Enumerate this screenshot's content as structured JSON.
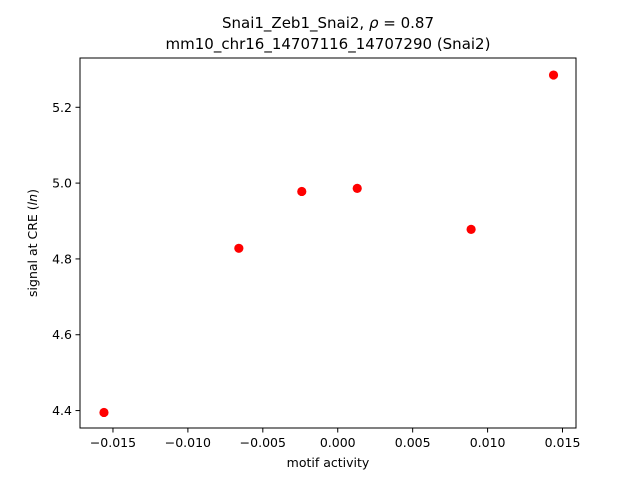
{
  "chart_data": {
    "type": "scatter",
    "title_line1_prefix": "Snai1_Zeb1_Snai2, ",
    "title_line1_rho": "ρ",
    "title_line1_suffix": " = 0.87",
    "title_line2": "mm10_chr16_14707116_14707290 (Snai2)",
    "xlabel": "motif activity",
    "ylabel_prefix": "signal at CRE (",
    "ylabel_italic": "ln",
    "ylabel_suffix": ")",
    "xlim": [
      -0.0172,
      0.0159
    ],
    "ylim": [
      4.354,
      5.33
    ],
    "xticks": [
      {
        "value": -0.015,
        "label": "−0.015"
      },
      {
        "value": -0.01,
        "label": "−0.010"
      },
      {
        "value": -0.005,
        "label": "−0.005"
      },
      {
        "value": 0.0,
        "label": "0.000"
      },
      {
        "value": 0.005,
        "label": "0.005"
      },
      {
        "value": 0.01,
        "label": "0.010"
      },
      {
        "value": 0.015,
        "label": "0.015"
      }
    ],
    "yticks": [
      {
        "value": 4.4,
        "label": "4.4"
      },
      {
        "value": 4.6,
        "label": "4.6"
      },
      {
        "value": 4.8,
        "label": "4.8"
      },
      {
        "value": 5.0,
        "label": "5.0"
      },
      {
        "value": 5.2,
        "label": "5.2"
      }
    ],
    "marker_color": "#ff0000",
    "points": [
      {
        "x": -0.0156,
        "y": 4.395
      },
      {
        "x": -0.0066,
        "y": 4.828
      },
      {
        "x": -0.0024,
        "y": 4.978
      },
      {
        "x": 0.0013,
        "y": 4.986
      },
      {
        "x": 0.0089,
        "y": 4.878
      },
      {
        "x": 0.0144,
        "y": 5.285
      }
    ],
    "grid": false,
    "legend": "none"
  }
}
